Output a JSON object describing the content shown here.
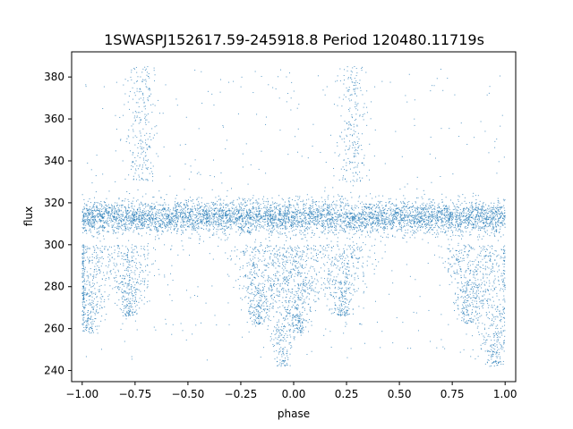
{
  "chart_data": {
    "type": "scatter",
    "title": "1SWASPJ152617.59-245918.8 Period 120480.11719s",
    "xlabel": "phase",
    "ylabel": "flux",
    "xlim": [
      -1.05,
      1.05
    ],
    "ylim": [
      234.7,
      392.0
    ],
    "x_ticks": [
      -1.0,
      -0.75,
      -0.5,
      -0.25,
      0.0,
      0.25,
      0.5,
      0.75,
      1.0
    ],
    "x_tick_labels": [
      "−1.00",
      "−0.75",
      "−0.50",
      "−0.25",
      "0.00",
      "0.25",
      "0.50",
      "0.75",
      "1.00"
    ],
    "y_ticks": [
      240,
      260,
      280,
      300,
      320,
      340,
      360,
      380
    ],
    "y_tick_labels": [
      "240",
      "260",
      "280",
      "300",
      "320",
      "340",
      "360",
      "380"
    ],
    "grid": false,
    "marker_color": "#1f77b4",
    "baseline_flux": 313,
    "baseline_scatter": 4,
    "phase_range": [
      -1.0,
      1.0
    ],
    "features": [
      {
        "phase_center": -0.97,
        "flux_low": 258,
        "flux_high": 300,
        "kind": "dip"
      },
      {
        "phase_center": -0.78,
        "flux_low": 266,
        "flux_high": 300,
        "kind": "dip"
      },
      {
        "phase_center": -0.72,
        "flux_low": 330,
        "flux_high": 385,
        "kind": "flare"
      },
      {
        "phase_center": -0.17,
        "flux_low": 262,
        "flux_high": 300,
        "kind": "dip"
      },
      {
        "phase_center": -0.05,
        "flux_low": 242,
        "flux_high": 300,
        "kind": "dip"
      },
      {
        "phase_center": 0.03,
        "flux_low": 258,
        "flux_high": 300,
        "kind": "dip"
      },
      {
        "phase_center": 0.23,
        "flux_low": 266,
        "flux_high": 300,
        "kind": "dip"
      },
      {
        "phase_center": 0.28,
        "flux_low": 330,
        "flux_high": 385,
        "kind": "flare"
      },
      {
        "phase_center": 0.83,
        "flux_low": 262,
        "flux_high": 300,
        "kind": "dip"
      },
      {
        "phase_center": 0.95,
        "flux_low": 242,
        "flux_high": 300,
        "kind": "dip"
      }
    ]
  }
}
